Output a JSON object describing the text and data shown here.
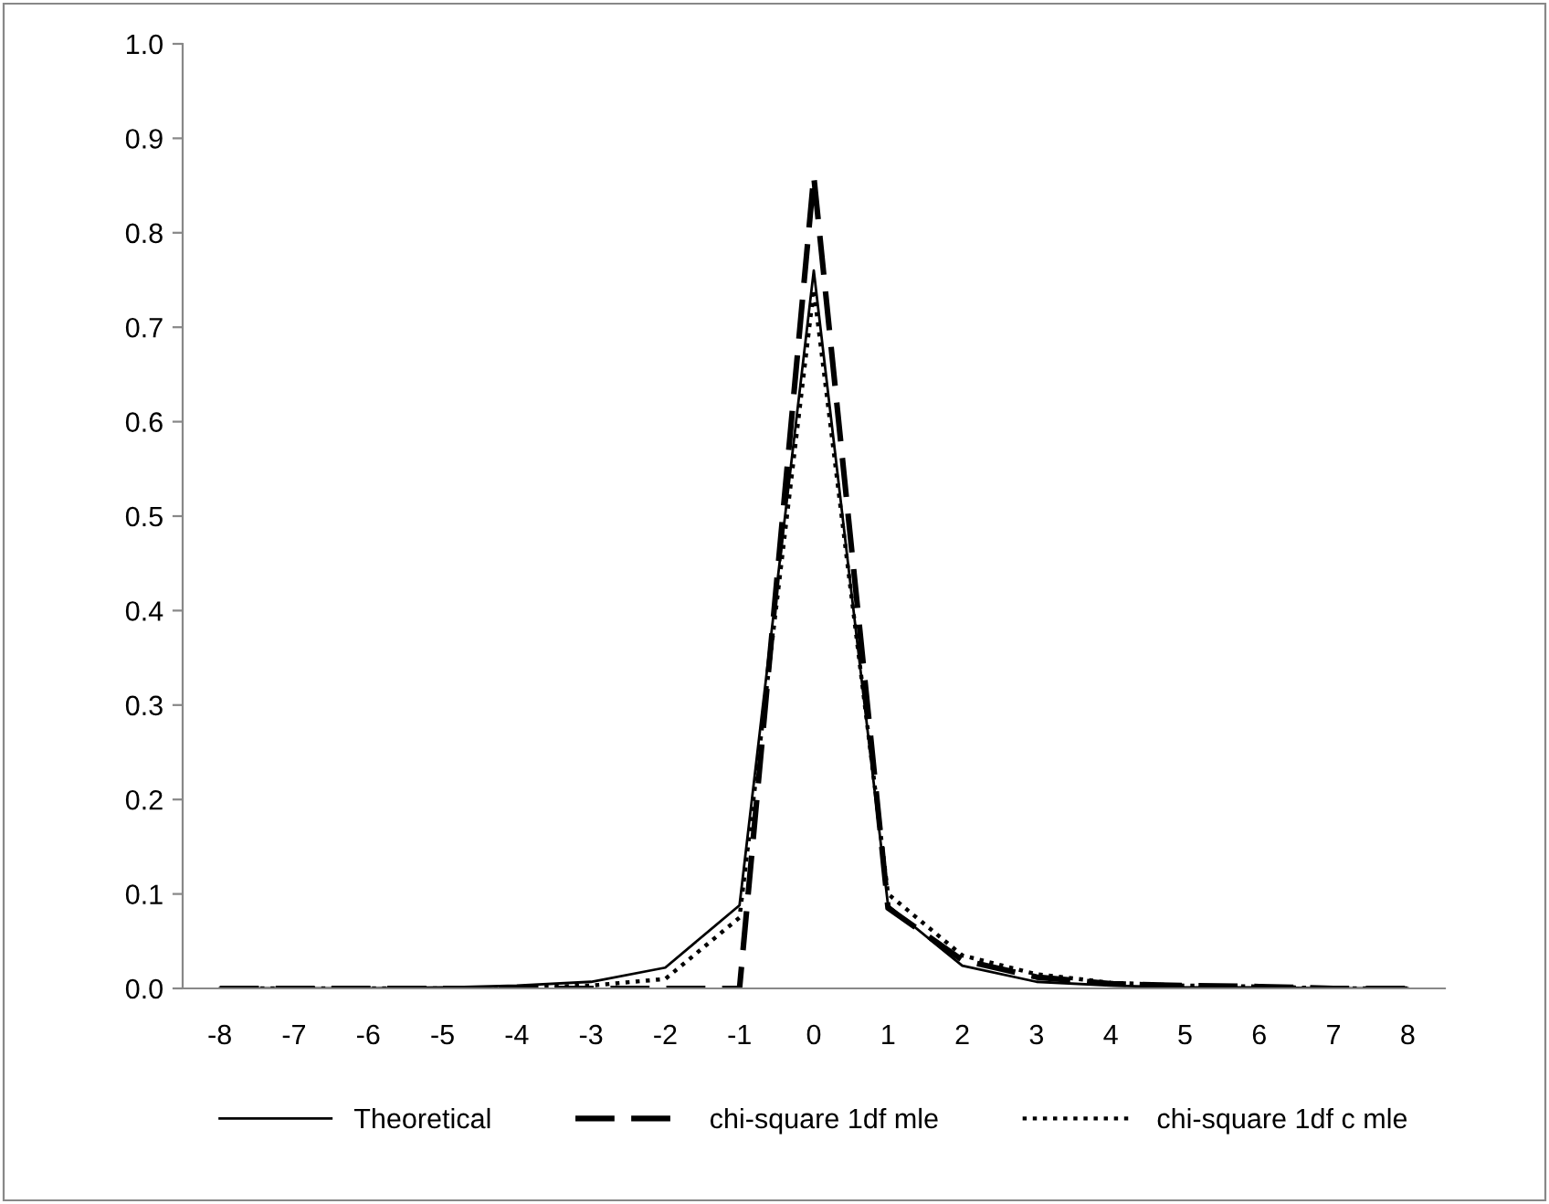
{
  "chart_data": {
    "type": "line",
    "categories": [
      "-8",
      "-7",
      "-6",
      "-5",
      "-4",
      "-3",
      "-2",
      "-1",
      "0",
      "1",
      "2",
      "3",
      "4",
      "5",
      "6",
      "7",
      "8"
    ],
    "series": [
      {
        "name": "Theoretical",
        "color": "#000000",
        "line_style": "solid",
        "values": [
          0,
          0,
          0,
          0.001,
          0.003,
          0.007,
          0.022,
          0.088,
          0.76,
          0.088,
          0.024,
          0.007,
          0.003,
          0.001,
          0.001,
          0,
          0
        ]
      },
      {
        "name": "chi-square 1df mle",
        "color": "#000000",
        "line_style": "dashed",
        "values": [
          0,
          0,
          0,
          0,
          0,
          0,
          0,
          0,
          0.86,
          0.085,
          0.03,
          0.012,
          0.005,
          0.003,
          0.002,
          0,
          0
        ]
      },
      {
        "name": "chi-square 1df c mle",
        "color": "#000000",
        "line_style": "dotted",
        "values": [
          0,
          0,
          0,
          0,
          0.001,
          0.003,
          0.01,
          0.075,
          0.74,
          0.1,
          0.035,
          0.015,
          0.006,
          0.003,
          0.002,
          0,
          0
        ]
      }
    ],
    "ylim": [
      0,
      1.0
    ],
    "yticks": [
      {
        "value": 0,
        "label": "0.0"
      },
      {
        "value": 0.1,
        "label": "0.1"
      },
      {
        "value": 0.2,
        "label": "0.2"
      },
      {
        "value": 0.3,
        "label": "0.3"
      },
      {
        "value": 0.4,
        "label": "0.4"
      },
      {
        "value": 0.5,
        "label": "0.5"
      },
      {
        "value": 0.6,
        "label": "0.6"
      },
      {
        "value": 0.7,
        "label": "0.7"
      },
      {
        "value": 0.8,
        "label": "0.8"
      },
      {
        "value": 0.9,
        "label": "0.9"
      },
      {
        "value": 1.0,
        "label": "1.0"
      }
    ],
    "grid": false,
    "legend": "bottom",
    "marker": "none"
  }
}
